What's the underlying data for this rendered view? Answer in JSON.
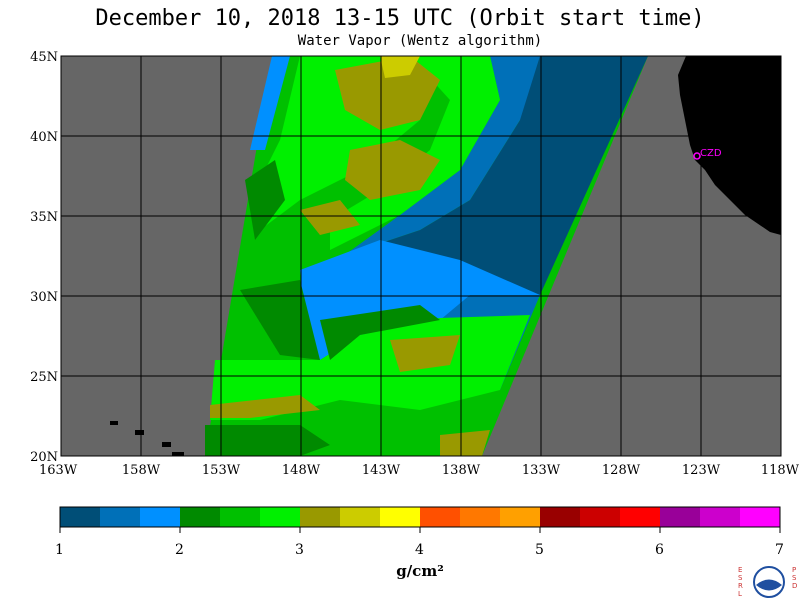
{
  "header": {
    "title": "December 10, 2018  13-15 UTC  (Orbit start time)",
    "subtitle": "Water Vapor (Wentz algorithm)"
  },
  "map": {
    "lat_labels": [
      "45N",
      "40N",
      "35N",
      "30N",
      "25N",
      "20N"
    ],
    "lon_labels": [
      "163W",
      "158W",
      "153W",
      "148W",
      "143W",
      "138W",
      "133W",
      "128W",
      "123W",
      "118W"
    ],
    "station_label": "CZD",
    "colors": {
      "ocean_no_data": "#666666",
      "land": "#000000",
      "station": "#ff00ff"
    }
  },
  "colorbar": {
    "labels": [
      "1",
      "2",
      "3",
      "4",
      "5",
      "6",
      "7"
    ],
    "unit": "g/cm²",
    "colors": [
      "#004e77",
      "#0070b8",
      "#0090ff",
      "#008a00",
      "#00c000",
      "#00f000",
      "#999900",
      "#cccc00",
      "#ffff00",
      "#ff5000",
      "#ff7800",
      "#ffa000",
      "#990000",
      "#cc0000",
      "#ff0000",
      "#990099",
      "#cc00cc",
      "#ff00ff"
    ]
  },
  "logo": {
    "left_letters": "ESRL",
    "right_letters": "PSD"
  }
}
